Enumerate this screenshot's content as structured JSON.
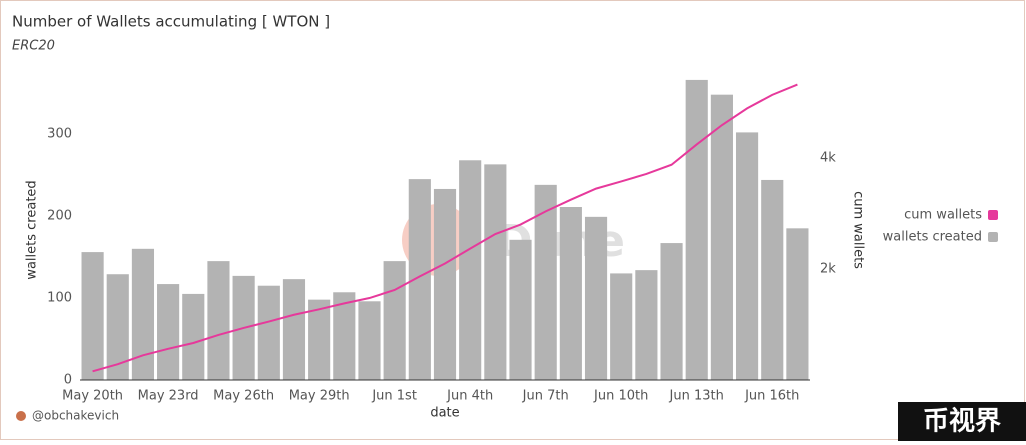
{
  "chart_data": {
    "type": "bar-line",
    "title": "Number of Wallets accumulating [ WTON ]",
    "subtitle": "ERC20",
    "x_label": "date",
    "y_label": "wallets created",
    "y2_label": "cum wallets",
    "author": "@obchakevich",
    "watermark": "Dune",
    "badge": "币视界",
    "categories": [
      "May 20th",
      null,
      null,
      "May 23rd",
      null,
      null,
      "May 26th",
      null,
      null,
      "May 29th",
      null,
      null,
      "Jun 1st",
      null,
      null,
      "Jun 4th",
      null,
      null,
      "Jun 7th",
      null,
      null,
      "Jun 10th",
      null,
      null,
      "Jun 13th",
      null,
      null,
      "Jun 16th",
      null
    ],
    "series": [
      {
        "name": "cum wallets",
        "type": "line",
        "axis": "y2",
        "color": "#e6399b",
        "values": [
          156,
          285,
          445,
          562,
          667,
          812,
          939,
          1054,
          1177,
          1275,
          1382,
          1478,
          1623,
          1868,
          2101,
          2369,
          2632,
          2803,
          3041,
          3252,
          3451,
          3581,
          3715,
          3882,
          4248,
          4596,
          4898,
          5142,
          5327
        ]
      },
      {
        "name": "wallets created",
        "type": "bar",
        "color": "#b3b3b3",
        "values": [
          156,
          129,
          160,
          117,
          105,
          145,
          127,
          115,
          123,
          98,
          107,
          96,
          145,
          245,
          233,
          268,
          263,
          171,
          238,
          211,
          199,
          130,
          134,
          167,
          366,
          348,
          302,
          244,
          185
        ]
      }
    ],
    "ylim": [
      0,
      372
    ],
    "yticks": [
      0,
      100,
      200,
      300
    ],
    "y2lim": [
      0,
      5500
    ],
    "y2ticks": [
      {
        "value": 2000,
        "label": "2k"
      },
      {
        "value": 4000,
        "label": "4k"
      }
    ],
    "legend": "right"
  }
}
